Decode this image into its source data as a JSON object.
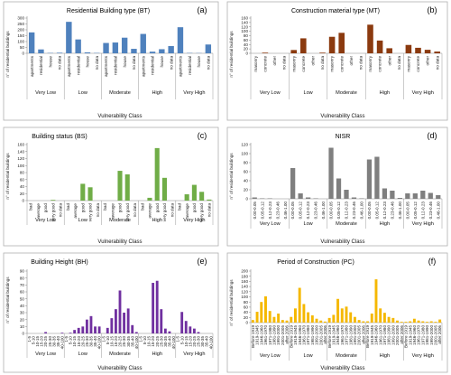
{
  "chart_data": [
    {
      "type": "bar",
      "title": "Residential Building type (BT)",
      "panel_letter": "(a)",
      "color": "#4f81bd",
      "ylabel": "n° of residential buildings",
      "xlabel": "Vulnerability Class",
      "ylim": [
        0,
        300
      ],
      "yticks": [
        0,
        50,
        100,
        150,
        200,
        250,
        300
      ],
      "groups": [
        {
          "name": "Very Low",
          "categories": [
            "apartments",
            "residential",
            "house",
            "no data"
          ],
          "values": [
            178,
            33,
            3,
            5
          ]
        },
        {
          "name": "Low",
          "categories": [
            "apartments",
            "residential",
            "house",
            "no data"
          ],
          "values": [
            268,
            118,
            8,
            3
          ]
        },
        {
          "name": "Moderate",
          "categories": [
            "apartments",
            "residential",
            "house",
            "no data"
          ],
          "values": [
            88,
            92,
            133,
            38
          ]
        },
        {
          "name": "High",
          "categories": [
            "apartments",
            "residential",
            "house",
            "no data"
          ],
          "values": [
            165,
            14,
            35,
            62
          ]
        },
        {
          "name": "Very High",
          "categories": [
            "apartments",
            "residential",
            "house",
            "no data"
          ],
          "values": [
            222,
            3,
            2,
            75
          ]
        }
      ],
      "group_axis_labels": [
        "Very Low",
        "Low",
        "Moderate",
        "High",
        "Very High"
      ]
    },
    {
      "type": "bar",
      "title": "Construction material type (MT)",
      "panel_letter": "(b)",
      "color": "#8b3a0f",
      "ylabel": "n° of residential buildings",
      "xlabel": "Vulnerability Class",
      "ylim": [
        0,
        160
      ],
      "yticks": [
        0,
        20,
        40,
        60,
        80,
        100,
        120,
        140,
        160
      ],
      "groups": [
        {
          "name": "Very Low",
          "categories": [
            "masonry",
            "concrete",
            "other",
            "no data"
          ],
          "values": [
            0,
            3,
            0,
            0
          ]
        },
        {
          "name": "Low",
          "categories": [
            "masonry",
            "concrete",
            "other",
            "no data"
          ],
          "values": [
            15,
            68,
            0,
            3
          ]
        },
        {
          "name": "Moderate",
          "categories": [
            "masonry",
            "concrete",
            "other",
            "no data"
          ],
          "values": [
            75,
            93,
            0,
            0
          ]
        },
        {
          "name": "High",
          "categories": [
            "masonry",
            "concrete",
            "other",
            "no data"
          ],
          "values": [
            130,
            58,
            23,
            0
          ]
        },
        {
          "name": "Very High",
          "categories": [
            "masonry",
            "concrete",
            "other",
            "no data"
          ],
          "values": [
            38,
            25,
            16,
            8
          ]
        }
      ],
      "group_axis_labels": [
        "Very Low",
        "Low",
        "Moderate",
        "High",
        "Very High"
      ]
    },
    {
      "type": "bar",
      "title": "Building status (BS)",
      "panel_letter": "(c)",
      "color": "#70ad47",
      "ylabel": "n° of residential buildings",
      "xlabel": "Vulnerability Class",
      "ylim": [
        0,
        160
      ],
      "yticks": [
        0,
        20,
        40,
        60,
        80,
        100,
        120,
        140,
        160
      ],
      "groups": [
        {
          "name": "Very Low",
          "categories": [
            "bad",
            "average",
            "good",
            "very good",
            "no data"
          ],
          "values": [
            0,
            0,
            0,
            2,
            0
          ]
        },
        {
          "name": "Low",
          "categories": [
            "bad",
            "average",
            "good",
            "very good",
            "no data"
          ],
          "values": [
            0,
            0,
            48,
            38,
            0
          ]
        },
        {
          "name": "Moderate",
          "categories": [
            "bad",
            "average",
            "good",
            "very good",
            "no data"
          ],
          "values": [
            0,
            0,
            85,
            75,
            0
          ]
        },
        {
          "name": "High",
          "categories": [
            "bad",
            "average",
            "good",
            "very good",
            "no data"
          ],
          "values": [
            0,
            8,
            150,
            65,
            0
          ]
        },
        {
          "name": "Very High",
          "categories": [
            "bad",
            "average",
            "good",
            "very good",
            "no data"
          ],
          "values": [
            0,
            18,
            45,
            25,
            3
          ]
        }
      ],
      "group_axis_labels": [
        "Very Low",
        "Low",
        "Moderate",
        "High",
        "Very High"
      ]
    },
    {
      "type": "bar",
      "title": "NISR",
      "panel_letter": "(d)",
      "color": "#7f7f7f",
      "ylabel": "n° of residential buildings",
      "xlabel": "Vulnerability Class",
      "ylim": [
        0,
        120
      ],
      "yticks": [
        0,
        20,
        40,
        60,
        80,
        100,
        120
      ],
      "groups": [
        {
          "name": "Very Low",
          "categories": [
            "0.00-0.05",
            "0.05-0.12",
            "0.12-0.23",
            "0.23-0.46",
            "0.46-1.00"
          ],
          "values": [
            3,
            1,
            1,
            0,
            0
          ]
        },
        {
          "name": "Low",
          "categories": [
            "0.00-0.05",
            "0.05-0.12",
            "0.12-0.23",
            "0.23-0.46",
            "0.46-1.00"
          ],
          "values": [
            68,
            12,
            3,
            1,
            0
          ]
        },
        {
          "name": "Moderate",
          "categories": [
            "0.00-0.05",
            "0.05-0.12",
            "0.12-0.23",
            "0.23-0.46",
            "0.46-1.00"
          ],
          "values": [
            113,
            45,
            20,
            3,
            1
          ]
        },
        {
          "name": "High",
          "categories": [
            "0.00-0.05",
            "0.05-0.12",
            "0.12-0.23",
            "0.23-0.46",
            "0.46-1.00"
          ],
          "values": [
            87,
            93,
            23,
            18,
            2
          ]
        },
        {
          "name": "Very High",
          "categories": [
            "0.00-0.05",
            "0.05-0.12",
            "0.12-0.23",
            "0.23-0.46",
            "0.46-1.00"
          ],
          "values": [
            12,
            12,
            18,
            13,
            8
          ]
        }
      ],
      "group_axis_labels": [
        "Very Low",
        "Low",
        "Moderate",
        "High",
        "Very High"
      ]
    },
    {
      "type": "bar",
      "title": "Building Height (BH)",
      "panel_letter": "(e)",
      "color": "#7030a0",
      "ylabel": "n° of residential buildings",
      "xlabel": "Vulnerability Class",
      "ylim": [
        0,
        90
      ],
      "yticks": [
        0,
        10,
        20,
        30,
        40,
        50,
        60,
        70,
        80,
        90
      ],
      "groups": [
        {
          "name": "Very Low",
          "categories": [
            "1-5",
            "5-10",
            "10-15",
            "15-20",
            "20-25",
            "25-30",
            "30-35",
            "35-40",
            "40-100"
          ],
          "values": [
            0,
            0,
            0,
            0,
            2,
            0,
            0,
            0,
            1
          ]
        },
        {
          "name": "Low",
          "categories": [
            "1-5",
            "5-10",
            "10-15",
            "15-20",
            "20-25",
            "25-30",
            "30-35",
            "35-40",
            "40-100"
          ],
          "values": [
            0,
            1,
            5,
            8,
            10,
            20,
            25,
            10,
            10
          ]
        },
        {
          "name": "Moderate",
          "categories": [
            "1-5",
            "5-10",
            "10-15",
            "15-20",
            "20-25",
            "25-30",
            "30-35",
            "35-40",
            "40-100"
          ],
          "values": [
            0,
            8,
            22,
            35,
            62,
            30,
            36,
            12,
            2
          ]
        },
        {
          "name": "High",
          "categories": [
            "1-5",
            "5-10",
            "10-15",
            "15-20",
            "20-25",
            "25-30",
            "30-35",
            "35-40",
            "40-100"
          ],
          "values": [
            0,
            0,
            0,
            73,
            76,
            35,
            7,
            3,
            0
          ]
        },
        {
          "name": "Very High",
          "categories": [
            "1-5",
            "5-10",
            "10-15",
            "15-20",
            "20-25",
            "25-30",
            "30-35",
            "35-40",
            "40-100"
          ],
          "values": [
            0,
            31,
            18,
            10,
            7,
            2,
            0,
            0,
            0
          ]
        }
      ],
      "group_axis_labels": [
        "Very Low",
        "Low",
        "Moderate",
        "High",
        "Very High"
      ]
    },
    {
      "type": "bar",
      "title": "Period of Construction (PC)",
      "panel_letter": "(f)",
      "color": "#f5b800",
      "ylabel": "n° of residential buildings",
      "xlabel": "Vulnerability Class",
      "ylim": [
        0,
        200
      ],
      "yticks": [
        0,
        20,
        40,
        60,
        80,
        100,
        120,
        140,
        160,
        180,
        200
      ],
      "groups": [
        {
          "name": "Very Low",
          "categories": [
            "Before 1919",
            "1919-1945",
            "1946-1960",
            "1961-1970",
            "1971-1980",
            "1981-1990",
            "1991-2000",
            "2001-2005",
            "after 2006"
          ],
          "values": [
            10,
            42,
            80,
            102,
            45,
            22,
            35,
            10,
            8
          ]
        },
        {
          "name": "Low",
          "categories": [
            "Before 1919",
            "1919-1945",
            "1946-1960",
            "1961-1970",
            "1971-1980",
            "1981-1990",
            "1991-2000",
            "2001-2005",
            "after 2006"
          ],
          "values": [
            22,
            55,
            135,
            72,
            40,
            28,
            15,
            8,
            4
          ]
        },
        {
          "name": "Moderate",
          "categories": [
            "Before 1919",
            "1919-1945",
            "1946-1960",
            "1961-1970",
            "1971-1980",
            "1981-1990",
            "1991-2000",
            "2001-2005",
            "after 2006"
          ],
          "values": [
            18,
            30,
            92,
            55,
            62,
            40,
            22,
            10,
            5
          ]
        },
        {
          "name": "High",
          "categories": [
            "Before 1919",
            "1919-1945",
            "1946-1960",
            "1961-1970",
            "1971-1980",
            "1981-1990",
            "1991-2000",
            "2001-2005",
            "after 2006"
          ],
          "values": [
            5,
            35,
            168,
            55,
            38,
            22,
            18,
            8,
            3
          ]
        },
        {
          "name": "Very High",
          "categories": [
            "Before 1919",
            "1919-1945",
            "1946-1960",
            "1961-1970",
            "1971-1980",
            "1981-1990",
            "1991-2000",
            "2001-2005",
            "after 2006"
          ],
          "values": [
            3,
            5,
            15,
            8,
            5,
            3,
            5,
            3,
            12
          ]
        }
      ],
      "group_axis_labels": [
        "Very Low",
        "Low",
        "Moderate",
        "High",
        "Very High"
      ]
    }
  ]
}
